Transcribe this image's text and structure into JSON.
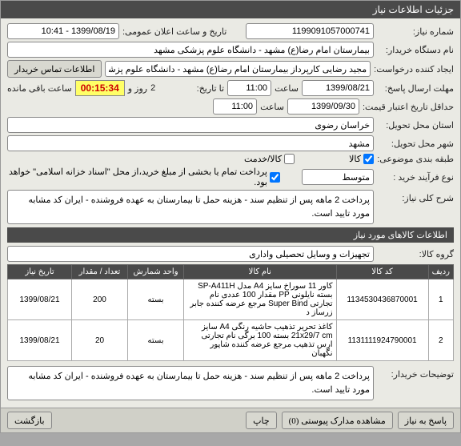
{
  "window": {
    "title": "جزئیات اطلاعات نیاز"
  },
  "fields": {
    "need_number_label": "شماره نیاز:",
    "need_number": "1199091057000741",
    "announce_label": "تاریخ و ساعت اعلان عمومی:",
    "announce_value": "1399/08/19 - 10:41",
    "buyer_org_label": "نام دستگاه خریدار:",
    "buyer_org": "بیمارستان امام رضا(ع) مشهد - دانشگاه علوم پزشکی مشهد",
    "creator_label": "ایجاد کننده درخواست:",
    "creator": "مجید رضایی کارپرداز بیمارستان امام رضا(ع) مشهد - دانشگاه علوم پزشکی مشهد",
    "contact_btn": "اطلاعات تماس خریدار",
    "deadline_label": "مهلت ارسال پاسخ:",
    "deadline_date": "1399/08/21",
    "time_label": "ساعت",
    "deadline_time": "11:00",
    "to_date_label": "تا تاریخ:",
    "days_word": "روز و",
    "days_value": "2",
    "timer": "00:15:34",
    "remaining": "ساعت باقی مانده",
    "validity_label": "حداقل تاریخ اعتبار قیمت:",
    "validity_date": "1399/09/30",
    "validity_time": "11:00",
    "delivery_state_label": "استان محل تحویل:",
    "delivery_state": "خراسان رضوی",
    "delivery_city_label": "شهر محل تحویل:",
    "delivery_city": "مشهد",
    "budget_label": "طبقه بندی موضوعی:",
    "kala_chk": "کالا",
    "kala_checked": true,
    "service_chk": "کالا/خدمت",
    "service_checked": false,
    "process_label": "نوع فرآیند خرید :",
    "process_value": "متوسط",
    "payment_note": "پرداخت تمام یا بخشی از مبلغ خرید،از محل \"اسناد خزانه اسلامی\" خواهد بود.",
    "payment_checked": true,
    "desc_label": "شرح کلی نیاز:",
    "desc_text": "پرداخت 2 ماهه پس از تنظیم سند - هزینه حمل تا بیمارستان به عهده فروشنده - ایران کد مشابه مورد تایید است.",
    "items_header": "اطلاعات کالاهای مورد نیاز",
    "group_label": "گروه کالا:",
    "group_value": "تجهیزات و وسایل تحصیلی واداری",
    "buyer_notes_label": "توضیحات خریدار:",
    "buyer_notes": "پرداخت 2 ماهه پس از تنظیم سند - هزینه حمل تا بیمارستان به عهده فروشنده - ایران کد مشابه مورد تایید است."
  },
  "table": {
    "headers": {
      "row": "ردیف",
      "code": "کد کالا",
      "name": "نام کالا",
      "unit": "واحد شمارش",
      "qty": "تعداد / مقدار",
      "date": "تاریخ نیاز"
    },
    "rows": [
      {
        "n": "1",
        "code": "1134530436870001",
        "name": "کاور 11 سوراخ سایز A4 مدل SP-A411H بسته نایلونی PP مقدار 100 عددی نام تجارتی Super Bind مرجع عرضه کننده جابر زرساز د",
        "unit": "بسته",
        "qty": "200",
        "date": "1399/08/21"
      },
      {
        "n": "2",
        "code": "1131111924790001",
        "name": "کاغذ تحریر تذهیب حاشیه رنگی A4 سایز 21x29/7 cm بسته 100 برگی نام تجارتی ارس تذهیب مرجع عرضه کننده شاپور نگهبان",
        "unit": "بسته",
        "qty": "20",
        "date": "1399/08/21"
      }
    ]
  },
  "buttons": {
    "reply": "پاسخ به نیاز",
    "attachments": "مشاهده مدارک پیوستی   (0)",
    "print": "چاپ",
    "back": "بازگشت"
  }
}
